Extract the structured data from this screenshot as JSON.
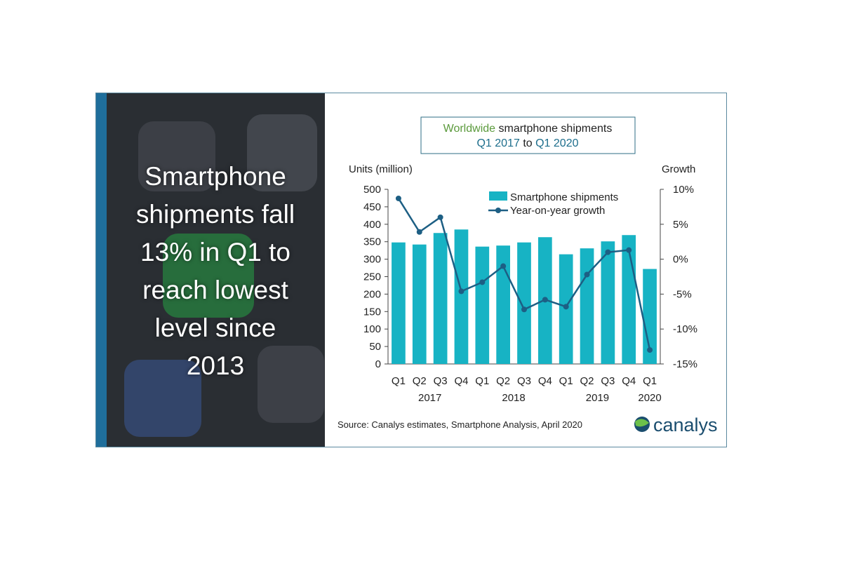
{
  "headline": {
    "lines": [
      "Smartphone",
      "shipments fall",
      "13% in Q1 to",
      "reach lowest",
      "level since",
      "2013"
    ]
  },
  "chart_data": {
    "type": "bar",
    "title": {
      "line1_highlight": "Worldwide",
      "line1_rest": " smartphone shipments",
      "line2_start": "Q1 2017",
      "line2_mid": " to ",
      "line2_end": "Q1 2020"
    },
    "ylabel_left": "Units (million)",
    "ylabel_right": "Growth",
    "categories": [
      "Q1",
      "Q2",
      "Q3",
      "Q4",
      "Q1",
      "Q2",
      "Q3",
      "Q4",
      "Q1",
      "Q2",
      "Q3",
      "Q4",
      "Q1"
    ],
    "year_labels": [
      {
        "label": "2017",
        "category_index": 1.5
      },
      {
        "label": "2018",
        "category_index": 5.5
      },
      {
        "label": "2019",
        "category_index": 9.5
      },
      {
        "label": "2020",
        "category_index": 12
      }
    ],
    "ylim_left": [
      0,
      500
    ],
    "yticks_left": [
      "0",
      "50",
      "100",
      "150",
      "200",
      "250",
      "300",
      "350",
      "400",
      "450",
      "500"
    ],
    "ylim_right": [
      -15,
      10
    ],
    "yticks_right": [
      "-15%",
      "-10%",
      "-5%",
      "0%",
      "5%",
      "10%"
    ],
    "series": [
      {
        "name": "Smartphone shipments",
        "type": "bar",
        "color": "#17b3c4",
        "values": [
          348,
          342,
          375,
          385,
          336,
          339,
          348,
          363,
          314,
          331,
          351,
          369,
          272
        ]
      },
      {
        "name": "Year-on-year growth",
        "type": "line",
        "color": "#1d5f84",
        "values": [
          8.7,
          3.9,
          6.0,
          -4.6,
          -3.3,
          -1.0,
          -7.2,
          -5.8,
          -6.8,
          -2.2,
          1.0,
          1.3,
          -13.0
        ]
      }
    ],
    "legend_position": "top-right",
    "grid": false,
    "source": "Source: Canalys estimates, Smartphone Analysis, April 2020",
    "logo": "canalys",
    "colors": {
      "title_highlight": "#5b9a3c",
      "title_accent": "#1d6e8c",
      "title_border": "#2c6e86",
      "axis": "#444444"
    }
  }
}
